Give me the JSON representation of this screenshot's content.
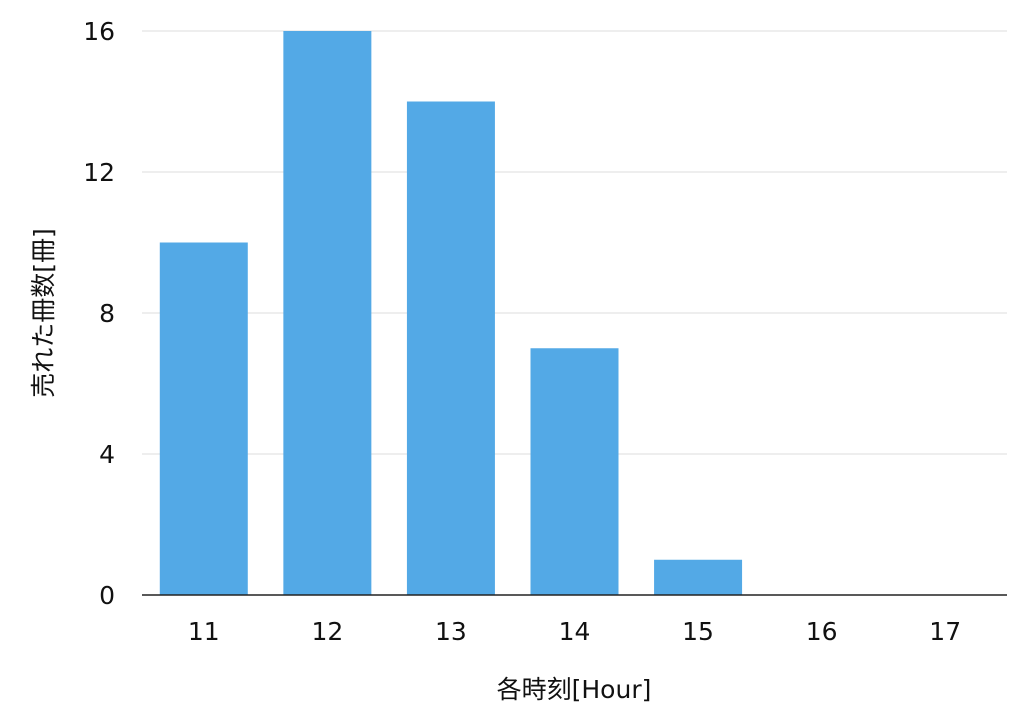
{
  "chart_data": {
    "type": "bar",
    "title": "",
    "xlabel": "各時刻[Hour]",
    "ylabel": "売れた冊数[冊]",
    "categories": [
      "11",
      "12",
      "13",
      "14",
      "15",
      "16",
      "17"
    ],
    "values": [
      10,
      16,
      14,
      7,
      1,
      0,
      0
    ],
    "ylim": [
      0,
      16
    ],
    "yticks": [
      "0",
      "4",
      "8",
      "12",
      "16"
    ],
    "grid": true,
    "bar_color": "#53a9e6",
    "grid_color": "#dddddd"
  }
}
